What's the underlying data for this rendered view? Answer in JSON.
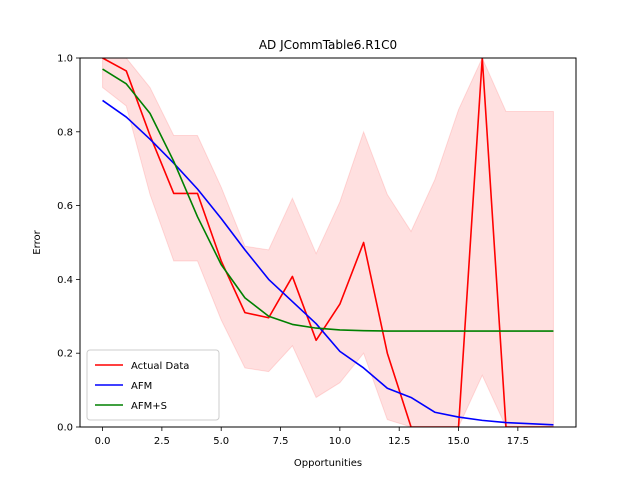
{
  "chart_data": {
    "type": "line",
    "title": "AD JCommTable6.R1C0",
    "xlabel": "Opportunities",
    "ylabel": "Error",
    "xlim": [
      -0.95,
      19.95
    ],
    "ylim": [
      0,
      1
    ],
    "xticks": [
      0,
      2.5,
      5,
      7.5,
      10,
      12.5,
      15,
      17.5
    ],
    "xtick_labels": [
      "0.0",
      "2.5",
      "5.0",
      "7.5",
      "10.0",
      "12.5",
      "15.0",
      "17.5"
    ],
    "yticks": [
      0,
      0.2,
      0.4,
      0.6,
      0.8,
      1.0
    ],
    "ytick_labels": [
      "0.0",
      "0.2",
      "0.4",
      "0.6",
      "0.8",
      "1.0"
    ],
    "grid": false,
    "legend_position": "lower-left",
    "x": [
      0,
      1,
      2,
      3,
      4,
      5,
      6,
      7,
      8,
      9,
      10,
      11,
      12,
      13,
      14,
      15,
      16,
      17,
      18,
      19
    ],
    "band": {
      "color": "#ff0000",
      "upper": [
        1.0,
        1.0,
        0.92,
        0.79,
        0.79,
        0.65,
        0.49,
        0.48,
        0.62,
        0.47,
        0.61,
        0.8,
        0.63,
        0.53,
        0.67,
        0.86,
        1.0,
        0.855,
        0.855,
        0.855
      ],
      "lower": [
        0.92,
        0.87,
        0.63,
        0.45,
        0.45,
        0.29,
        0.16,
        0.15,
        0.22,
        0.08,
        0.12,
        0.2,
        0.02,
        0.0,
        0.0,
        0.0,
        0.14,
        0.0,
        0.0,
        0.0
      ]
    },
    "series": [
      {
        "name": "Actual Data",
        "color": "#ff0000",
        "values": [
          1.0,
          0.965,
          0.79,
          0.633,
          0.633,
          0.45,
          0.31,
          0.296,
          0.408,
          0.235,
          0.333,
          0.5,
          0.2,
          0.0,
          0.0,
          0.0,
          1.0,
          0.0,
          0.0,
          0.0
        ]
      },
      {
        "name": "AFM",
        "color": "#0000ff",
        "values": [
          0.885,
          0.84,
          0.78,
          0.715,
          0.645,
          0.565,
          0.48,
          0.4,
          0.34,
          0.28,
          0.205,
          0.16,
          0.105,
          0.08,
          0.04,
          0.027,
          0.018,
          0.012,
          0.009,
          0.006
        ]
      },
      {
        "name": "AFM+S",
        "color": "#008000",
        "values": [
          0.97,
          0.93,
          0.85,
          0.72,
          0.57,
          0.44,
          0.35,
          0.3,
          0.278,
          0.268,
          0.263,
          0.261,
          0.26,
          0.26,
          0.26,
          0.26,
          0.26,
          0.26,
          0.26,
          0.26
        ]
      }
    ]
  }
}
